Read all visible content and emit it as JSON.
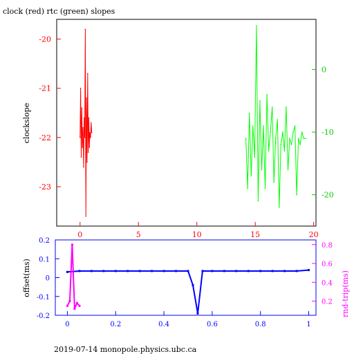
{
  "chart_data": [
    {
      "type": "line",
      "title": "clock (red) rtc (green) slopes",
      "ylabel": "clockslope",
      "xlim": [
        -2,
        20.2
      ],
      "xticks": [
        "0",
        "5",
        "10",
        "15",
        "20"
      ],
      "ylim_left": [
        -23.8,
        -19.6
      ],
      "yticks_left": [
        "-20",
        "-21",
        "-22",
        "-23"
      ],
      "ylim_right": [
        -25,
        8
      ],
      "yticks_right": [
        "0",
        "-10",
        "-20"
      ],
      "grid": false,
      "colors": {
        "frame": "#000000",
        "left_axis": "#ff0000",
        "right_axis": "#00cc00",
        "x_axis": "#ff0000"
      },
      "series": [
        {
          "name": "clock",
          "axis": "left",
          "color": "#ff0000",
          "x": [
            0.0,
            0.05,
            0.1,
            0.15,
            0.2,
            0.25,
            0.3,
            0.35,
            0.4,
            0.45,
            0.5,
            0.55,
            0.6,
            0.65,
            0.7,
            0.75,
            0.8,
            0.85,
            0.9,
            0.95,
            1.0
          ],
          "y": [
            -22.0,
            -21.0,
            -22.4,
            -21.4,
            -22.2,
            -21.8,
            -22.6,
            -21.6,
            -22.0,
            -19.8,
            -23.6,
            -21.2,
            -22.5,
            -20.7,
            -22.3,
            -21.6,
            -22.2,
            -21.9,
            -22.0,
            -21.7,
            -21.9
          ]
        },
        {
          "name": "rtc",
          "axis": "right",
          "color": "#00ff00",
          "x": [
            14.2,
            14.35,
            14.5,
            14.65,
            14.8,
            14.95,
            15.1,
            15.25,
            15.4,
            15.55,
            15.7,
            15.85,
            16.0,
            16.15,
            16.3,
            16.45,
            16.6,
            16.75,
            16.9,
            17.05,
            17.2,
            17.35,
            17.5,
            17.65,
            17.8,
            17.95,
            18.1,
            18.25,
            18.4,
            18.55,
            18.7,
            18.85,
            19.0,
            19.15,
            19.3
          ],
          "y": [
            -11,
            -19,
            -7,
            -17,
            -9,
            -14,
            7,
            -21,
            -5,
            -16,
            -9,
            -19,
            -4,
            -13,
            -10,
            -6,
            -18,
            -11,
            -8,
            -22,
            -12,
            -10,
            -13,
            -6,
            -16,
            -11,
            -12,
            -10,
            -9,
            -20,
            -11,
            -12,
            -10,
            -11,
            -11
          ]
        }
      ]
    },
    {
      "type": "scatter",
      "xlabel": "",
      "ylabel": "offset(ms)",
      "ylabel_right": "rnd-trip(ms)",
      "xlim": [
        -0.05,
        1.03
      ],
      "xticks": [
        "0",
        "0.2",
        "0.4",
        "0.6",
        "0.8",
        "1"
      ],
      "ylim_left": [
        -0.2,
        0.2
      ],
      "yticks_left": [
        "0.2",
        "0.1",
        "0",
        "-0.1",
        "-0.2"
      ],
      "ylim_right": [
        0.05,
        0.85
      ],
      "yticks_right": [
        "0.8",
        "0.6",
        "0.4",
        "0.2"
      ],
      "grid": false,
      "colors": {
        "frame": "#0000ff",
        "left_axis": "#0000ff",
        "right_axis": "#ff00ff",
        "x_axis": "#0000ff"
      },
      "series": [
        {
          "name": "offset",
          "axis": "left",
          "color": "#0000ff",
          "x": [
            0.0,
            0.05,
            0.1,
            0.15,
            0.2,
            0.25,
            0.3,
            0.35,
            0.4,
            0.45,
            0.5,
            0.52,
            0.54,
            0.56,
            0.6,
            0.65,
            0.7,
            0.75,
            0.8,
            0.85,
            0.9,
            0.95,
            1.0
          ],
          "y": [
            0.03,
            0.035,
            0.035,
            0.035,
            0.035,
            0.035,
            0.035,
            0.035,
            0.035,
            0.035,
            0.035,
            -0.04,
            -0.19,
            0.035,
            0.035,
            0.035,
            0.035,
            0.035,
            0.035,
            0.035,
            0.035,
            0.035,
            0.04
          ]
        },
        {
          "name": "rnd-trip",
          "axis": "right",
          "color": "#ff00ff",
          "x": [
            0.0,
            0.01,
            0.02,
            0.03,
            0.04,
            0.05
          ],
          "y": [
            0.15,
            0.2,
            0.8,
            0.12,
            0.18,
            0.15
          ]
        }
      ]
    }
  ],
  "footer": "2019-07-14  monopole.physics.ubc.ca"
}
